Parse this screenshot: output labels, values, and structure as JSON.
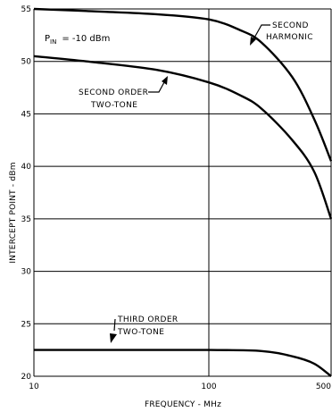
{
  "chart_data": {
    "type": "line",
    "title": "",
    "xlabel": "FREQUENCY - MHz",
    "ylabel": "INTERCEPT POINT - dBm",
    "xscale": "log",
    "xlim": [
      10,
      500
    ],
    "ylim": [
      20,
      55
    ],
    "x_ticks": [
      10,
      100,
      500
    ],
    "x_tick_labels": [
      "10",
      "100",
      "500"
    ],
    "y_ticks": [
      20,
      25,
      30,
      35,
      40,
      45,
      50,
      55
    ],
    "grid": "horizontal at every y tick, vertical at 100 MHz",
    "condition": {
      "symbol": "P",
      "subscript": "IN",
      "value": "= -10 dBm"
    },
    "series": [
      {
        "id": "second-harmonic",
        "annotation": [
          "SECOND",
          "HARMONIC"
        ],
        "x": [
          10,
          20,
          50,
          100,
          150,
          200,
          300,
          400,
          500
        ],
        "y": [
          55,
          54.8,
          54.5,
          54,
          53,
          51.8,
          48.5,
          44.5,
          40.5
        ]
      },
      {
        "id": "second-order-two-tone",
        "annotation": [
          "SECOND ORDER",
          "TWO-TONE"
        ],
        "x": [
          10,
          20,
          50,
          100,
          150,
          200,
          300,
          400,
          500
        ],
        "y": [
          50.5,
          50,
          49.2,
          48,
          46.8,
          45.5,
          42.5,
          39.5,
          35
        ]
      },
      {
        "id": "third-order-two-tone",
        "annotation": [
          "THIRD ORDER",
          "TWO-TONE"
        ],
        "x": [
          10,
          50,
          100,
          200,
          300,
          400,
          500
        ],
        "y": [
          22.5,
          22.5,
          22.5,
          22.4,
          21.9,
          21.2,
          20
        ]
      }
    ]
  }
}
